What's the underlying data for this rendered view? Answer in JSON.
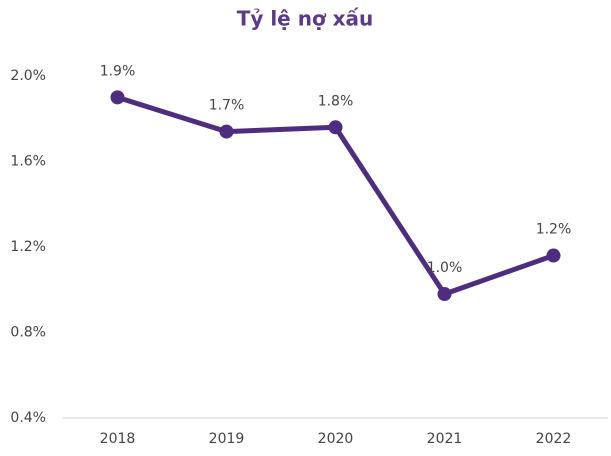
{
  "chart_data": {
    "type": "line",
    "title": "Tỷ lệ nợ xấu",
    "categories": [
      "2018",
      "2019",
      "2020",
      "2021",
      "2022"
    ],
    "series": [
      {
        "name": "Tỷ lệ nợ xấu",
        "color": "#4e2d80",
        "values": [
          1.9,
          1.74,
          1.76,
          0.98,
          1.16
        ],
        "value_labels": [
          "1.9%",
          "1.7%",
          "1.8%",
          "1.0%",
          "1.2%"
        ]
      }
    ],
    "ylim": [
      0.4,
      2.0
    ],
    "yticks": [
      {
        "value": 0.4,
        "label": "0.4%"
      },
      {
        "value": 0.8,
        "label": "0.8%"
      },
      {
        "value": 1.2,
        "label": "1.2%"
      },
      {
        "value": 1.6,
        "label": "1.6%"
      },
      {
        "value": 2.0,
        "label": "2.0%"
      }
    ],
    "grid": false
  }
}
